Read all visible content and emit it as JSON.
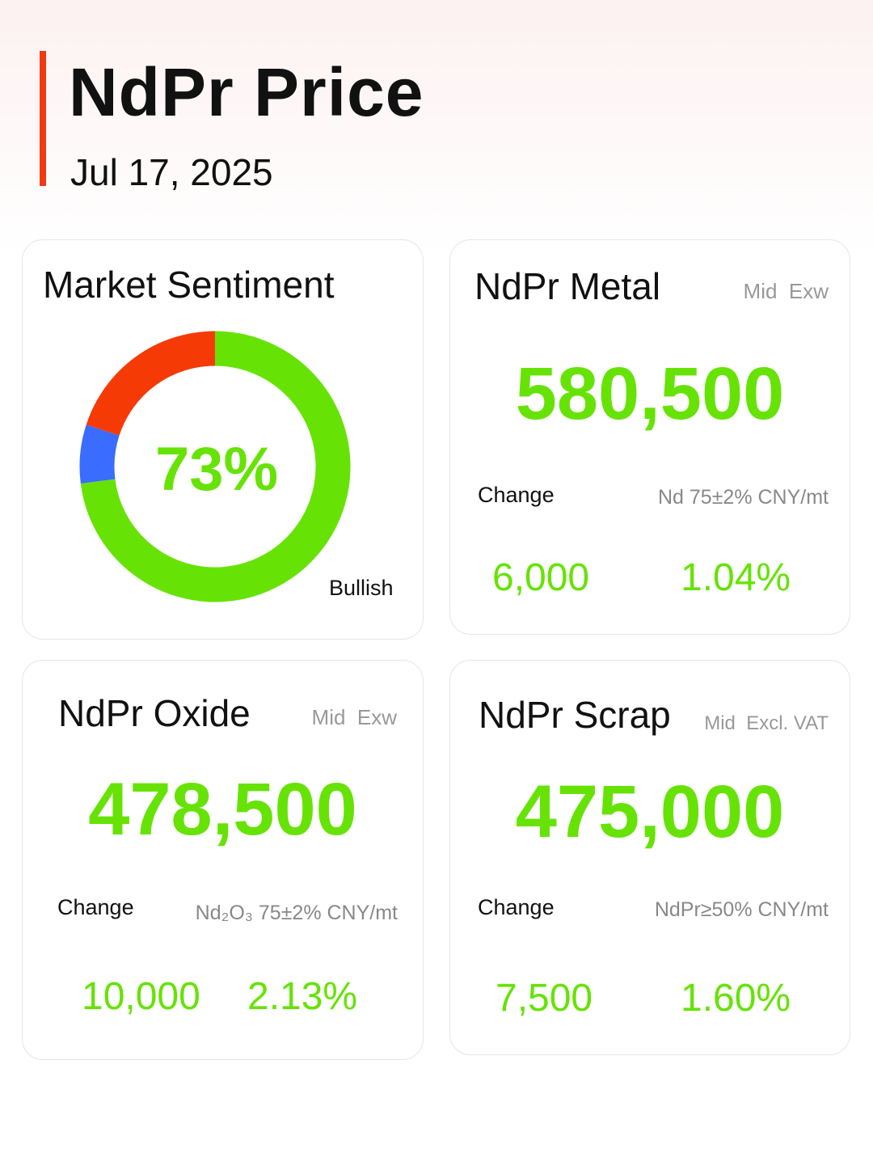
{
  "header": {
    "title": "NdPr Price",
    "date": "Jul 17, 2025"
  },
  "sentiment": {
    "title": "Market Sentiment",
    "percent_label": "73%",
    "label": "Bullish",
    "chart_data": {
      "type": "pie",
      "segments": [
        {
          "value": 73,
          "color": "#66e305"
        },
        {
          "value": 7,
          "color": "#3a6cff"
        },
        {
          "value": 20,
          "color": "#f53a06"
        }
      ]
    }
  },
  "metal": {
    "title": "NdPr Metal",
    "tag": "Mid  Exw",
    "price": "580,500",
    "change_label": "Change",
    "spec": "Nd 75±2% CNY/mt",
    "change": "6,000",
    "change_pct": "1.04%"
  },
  "oxide": {
    "title": "NdPr Oxide",
    "tag": "Mid  Exw",
    "price": "478,500",
    "change_label": "Change",
    "spec": "Nd₂O₃ 75±2% CNY/mt",
    "change": "10,000",
    "change_pct": "2.13%"
  },
  "scrap": {
    "title": "NdPr Scrap",
    "tag": "Mid  Excl. VAT",
    "price": "475,000",
    "change_label": "Change",
    "spec": "NdPr≥50% CNY/mt",
    "change": "7,500",
    "change_pct": "1.60%"
  },
  "colors": {
    "accent": "#f03a12",
    "positive": "#66e305"
  }
}
